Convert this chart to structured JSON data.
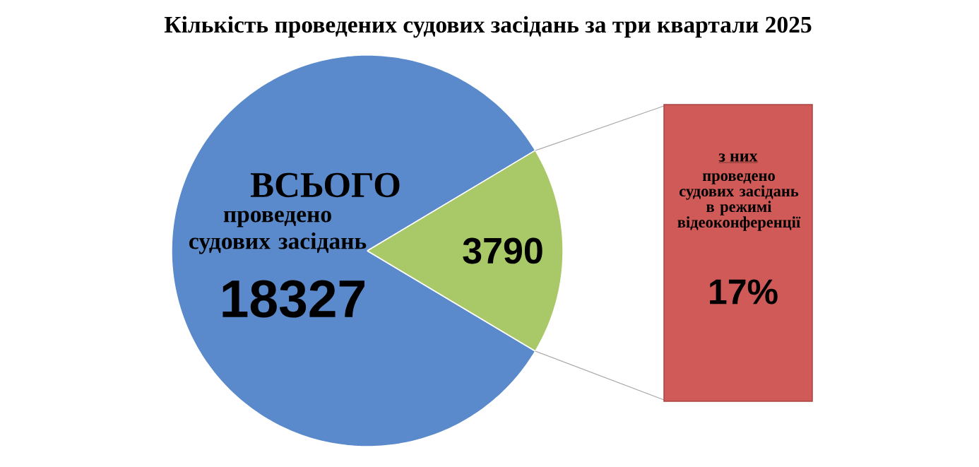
{
  "chart_data": {
    "type": "pie",
    "title": "Кількість проведених судових засідань за три квартали 2025",
    "categories": [
      "ВСЬОГО",
      "проведено судових засідань в режимі відеоконференції"
    ],
    "values": [
      18327,
      3790
    ],
    "colors": [
      "#5a8acb",
      "#a9c868"
    ],
    "data_labels": true,
    "annotations": [
      "проведено судових засідань",
      "з них",
      "17%"
    ]
  }
}
